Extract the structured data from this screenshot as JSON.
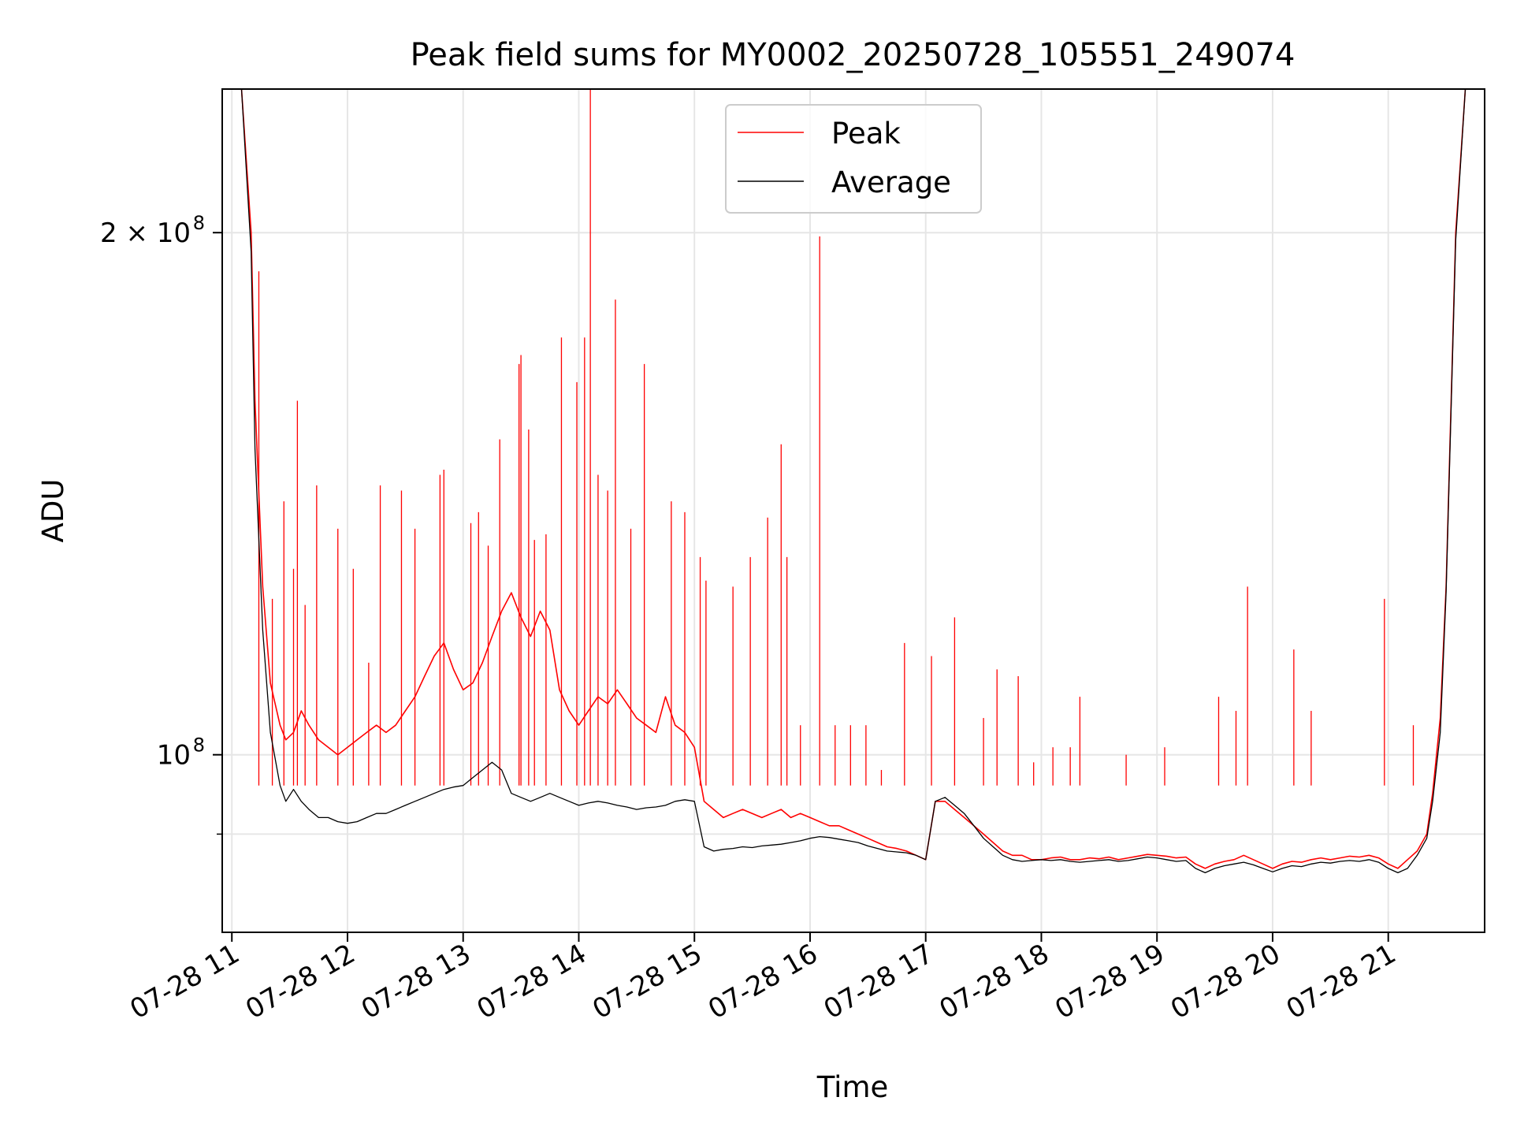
{
  "chart_data": {
    "type": "line",
    "title": "Peak field sums for MY0002_20250728_105551_249074",
    "xlabel": "Time",
    "ylabel": "ADU",
    "yscale": "log",
    "grid": true,
    "legend_placement": "top-center",
    "x_unit": "time",
    "xlim": [
      "2025-07-28 10:55",
      "2025-07-28 21:50"
    ],
    "ylim": [
      79000000,
      242000000
    ],
    "x_ticks": [
      {
        "value": "2025-07-28 11:00",
        "label": "07-28 11"
      },
      {
        "value": "2025-07-28 12:00",
        "label": "07-28 12"
      },
      {
        "value": "2025-07-28 13:00",
        "label": "07-28 13"
      },
      {
        "value": "2025-07-28 14:00",
        "label": "07-28 14"
      },
      {
        "value": "2025-07-28 15:00",
        "label": "07-28 15"
      },
      {
        "value": "2025-07-28 16:00",
        "label": "07-28 16"
      },
      {
        "value": "2025-07-28 17:00",
        "label": "07-28 17"
      },
      {
        "value": "2025-07-28 18:00",
        "label": "07-28 18"
      },
      {
        "value": "2025-07-28 19:00",
        "label": "07-28 19"
      },
      {
        "value": "2025-07-28 20:00",
        "label": "07-28 20"
      },
      {
        "value": "2025-07-28 21:00",
        "label": "07-28 21"
      }
    ],
    "y_ticks": [
      {
        "value": 100000000,
        "label": "10",
        "exp": "8"
      },
      {
        "value": 200000000,
        "label": "2 × 10",
        "exp": "8"
      }
    ],
    "y_minor_ticks": [
      90000000
    ],
    "series": [
      {
        "name": "Peak",
        "color": "#ff0000",
        "x": [
          "2025-07-28 10:55",
          "2025-07-28 11:05",
          "2025-07-28 11:10",
          "2025-07-28 11:12",
          "2025-07-28 11:16",
          "2025-07-28 11:20",
          "2025-07-28 11:25",
          "2025-07-28 11:28",
          "2025-07-28 11:32",
          "2025-07-28 11:36",
          "2025-07-28 11:40",
          "2025-07-28 11:45",
          "2025-07-28 11:50",
          "2025-07-28 11:55",
          "2025-07-28 12:00",
          "2025-07-28 12:05",
          "2025-07-28 12:10",
          "2025-07-28 12:15",
          "2025-07-28 12:20",
          "2025-07-28 12:25",
          "2025-07-28 12:30",
          "2025-07-28 12:35",
          "2025-07-28 12:40",
          "2025-07-28 12:45",
          "2025-07-28 12:50",
          "2025-07-28 12:55",
          "2025-07-28 13:00",
          "2025-07-28 13:05",
          "2025-07-28 13:10",
          "2025-07-28 13:15",
          "2025-07-28 13:20",
          "2025-07-28 13:25",
          "2025-07-28 13:30",
          "2025-07-28 13:35",
          "2025-07-28 13:40",
          "2025-07-28 13:45",
          "2025-07-28 13:50",
          "2025-07-28 13:55",
          "2025-07-28 14:00",
          "2025-07-28 14:05",
          "2025-07-28 14:10",
          "2025-07-28 14:15",
          "2025-07-28 14:20",
          "2025-07-28 14:25",
          "2025-07-28 14:30",
          "2025-07-28 14:35",
          "2025-07-28 14:40",
          "2025-07-28 14:45",
          "2025-07-28 14:50",
          "2025-07-28 14:55",
          "2025-07-28 15:00",
          "2025-07-28 15:05",
          "2025-07-28 15:10",
          "2025-07-28 15:15",
          "2025-07-28 15:20",
          "2025-07-28 15:25",
          "2025-07-28 15:30",
          "2025-07-28 15:35",
          "2025-07-28 15:40",
          "2025-07-28 15:45",
          "2025-07-28 15:50",
          "2025-07-28 15:55",
          "2025-07-28 16:00",
          "2025-07-28 16:05",
          "2025-07-28 16:10",
          "2025-07-28 16:15",
          "2025-07-28 16:20",
          "2025-07-28 16:25",
          "2025-07-28 16:30",
          "2025-07-28 16:35",
          "2025-07-28 16:40",
          "2025-07-28 16:45",
          "2025-07-28 16:50",
          "2025-07-28 16:55",
          "2025-07-28 17:00",
          "2025-07-28 17:05",
          "2025-07-28 17:10",
          "2025-07-28 17:15",
          "2025-07-28 17:20",
          "2025-07-28 17:25",
          "2025-07-28 17:30",
          "2025-07-28 17:35",
          "2025-07-28 17:40",
          "2025-07-28 17:45",
          "2025-07-28 17:50",
          "2025-07-28 17:55",
          "2025-07-28 18:00",
          "2025-07-28 18:05",
          "2025-07-28 18:10",
          "2025-07-28 18:15",
          "2025-07-28 18:20",
          "2025-07-28 18:25",
          "2025-07-28 18:30",
          "2025-07-28 18:35",
          "2025-07-28 18:40",
          "2025-07-28 18:45",
          "2025-07-28 18:50",
          "2025-07-28 18:55",
          "2025-07-28 19:00",
          "2025-07-28 19:05",
          "2025-07-28 19:10",
          "2025-07-28 19:15",
          "2025-07-28 19:20",
          "2025-07-28 19:25",
          "2025-07-28 19:30",
          "2025-07-28 19:35",
          "2025-07-28 19:40",
          "2025-07-28 19:45",
          "2025-07-28 19:50",
          "2025-07-28 19:55",
          "2025-07-28 20:00",
          "2025-07-28 20:05",
          "2025-07-28 20:10",
          "2025-07-28 20:15",
          "2025-07-28 20:20",
          "2025-07-28 20:25",
          "2025-07-28 20:30",
          "2025-07-28 20:35",
          "2025-07-28 20:40",
          "2025-07-28 20:45",
          "2025-07-28 20:50",
          "2025-07-28 20:55",
          "2025-07-28 21:00",
          "2025-07-28 21:05",
          "2025-07-28 21:10",
          "2025-07-28 21:15",
          "2025-07-28 21:20",
          "2025-07-28 21:23",
          "2025-07-28 21:27",
          "2025-07-28 21:30",
          "2025-07-28 21:35",
          "2025-07-28 21:40",
          "2025-07-28 21:50"
        ],
        "values": [
          242000000,
          242000000,
          200000000,
          160000000,
          125000000,
          110000000,
          104000000,
          102000000,
          103000000,
          106000000,
          104000000,
          102000000,
          101000000,
          100000000,
          101000000,
          102000000,
          103000000,
          104000000,
          103000000,
          104000000,
          106000000,
          108000000,
          111000000,
          114000000,
          116000000,
          112000000,
          109000000,
          110000000,
          113000000,
          117000000,
          121000000,
          124000000,
          120000000,
          117000000,
          121000000,
          118000000,
          109000000,
          106000000,
          104000000,
          106000000,
          108000000,
          107000000,
          109000000,
          107000000,
          105000000,
          104000000,
          103000000,
          108000000,
          104000000,
          103000000,
          101000000,
          94000000,
          93000000,
          92000000,
          92500000,
          93000000,
          92500000,
          92000000,
          92500000,
          93000000,
          92000000,
          92500000,
          92000000,
          91500000,
          91000000,
          91000000,
          90500000,
          90000000,
          89500000,
          89000000,
          88500000,
          88300000,
          88000000,
          87500000,
          87000000,
          94000000,
          94000000,
          93000000,
          92000000,
          91000000,
          90000000,
          89000000,
          88000000,
          87500000,
          87500000,
          87000000,
          87000000,
          87200000,
          87300000,
          87000000,
          87000000,
          87200000,
          87100000,
          87300000,
          87000000,
          87200000,
          87400000,
          87600000,
          87500000,
          87400000,
          87200000,
          87300000,
          86500000,
          86000000,
          86500000,
          86800000,
          87000000,
          87500000,
          87000000,
          86500000,
          86000000,
          86500000,
          86800000,
          86700000,
          87000000,
          87200000,
          87000000,
          87200000,
          87400000,
          87300000,
          87500000,
          87200000,
          86500000,
          86000000,
          87000000,
          88000000,
          90000000,
          95000000,
          105000000,
          125000000,
          200000000,
          242000000,
          242000000
        ]
      },
      {
        "name": "Average",
        "color": "#000000",
        "x": [
          "2025-07-28 10:55",
          "2025-07-28 11:05",
          "2025-07-28 11:10",
          "2025-07-28 11:12",
          "2025-07-28 11:16",
          "2025-07-28 11:20",
          "2025-07-28 11:25",
          "2025-07-28 11:28",
          "2025-07-28 11:32",
          "2025-07-28 11:36",
          "2025-07-28 11:40",
          "2025-07-28 11:45",
          "2025-07-28 11:50",
          "2025-07-28 11:55",
          "2025-07-28 12:00",
          "2025-07-28 12:05",
          "2025-07-28 12:10",
          "2025-07-28 12:15",
          "2025-07-28 12:20",
          "2025-07-28 12:25",
          "2025-07-28 12:30",
          "2025-07-28 12:35",
          "2025-07-28 12:40",
          "2025-07-28 12:45",
          "2025-07-28 12:50",
          "2025-07-28 12:55",
          "2025-07-28 13:00",
          "2025-07-28 13:05",
          "2025-07-28 13:10",
          "2025-07-28 13:15",
          "2025-07-28 13:20",
          "2025-07-28 13:25",
          "2025-07-28 13:30",
          "2025-07-28 13:35",
          "2025-07-28 13:40",
          "2025-07-28 13:45",
          "2025-07-28 13:50",
          "2025-07-28 13:55",
          "2025-07-28 14:00",
          "2025-07-28 14:05",
          "2025-07-28 14:10",
          "2025-07-28 14:15",
          "2025-07-28 14:20",
          "2025-07-28 14:25",
          "2025-07-28 14:30",
          "2025-07-28 14:35",
          "2025-07-28 14:40",
          "2025-07-28 14:45",
          "2025-07-28 14:50",
          "2025-07-28 14:55",
          "2025-07-28 15:00",
          "2025-07-28 15:05",
          "2025-07-28 15:10",
          "2025-07-28 15:15",
          "2025-07-28 15:20",
          "2025-07-28 15:25",
          "2025-07-28 15:30",
          "2025-07-28 15:35",
          "2025-07-28 15:40",
          "2025-07-28 15:45",
          "2025-07-28 15:50",
          "2025-07-28 15:55",
          "2025-07-28 16:00",
          "2025-07-28 16:05",
          "2025-07-28 16:10",
          "2025-07-28 16:15",
          "2025-07-28 16:20",
          "2025-07-28 16:25",
          "2025-07-28 16:30",
          "2025-07-28 16:35",
          "2025-07-28 16:40",
          "2025-07-28 16:45",
          "2025-07-28 16:50",
          "2025-07-28 16:55",
          "2025-07-28 17:00",
          "2025-07-28 17:05",
          "2025-07-28 17:10",
          "2025-07-28 17:15",
          "2025-07-28 17:20",
          "2025-07-28 17:25",
          "2025-07-28 17:30",
          "2025-07-28 17:35",
          "2025-07-28 17:40",
          "2025-07-28 17:45",
          "2025-07-28 17:50",
          "2025-07-28 17:55",
          "2025-07-28 18:00",
          "2025-07-28 18:05",
          "2025-07-28 18:10",
          "2025-07-28 18:15",
          "2025-07-28 18:20",
          "2025-07-28 18:25",
          "2025-07-28 18:30",
          "2025-07-28 18:35",
          "2025-07-28 18:40",
          "2025-07-28 18:45",
          "2025-07-28 18:50",
          "2025-07-28 18:55",
          "2025-07-28 19:00",
          "2025-07-28 19:05",
          "2025-07-28 19:10",
          "2025-07-28 19:15",
          "2025-07-28 19:20",
          "2025-07-28 19:25",
          "2025-07-28 19:30",
          "2025-07-28 19:35",
          "2025-07-28 19:40",
          "2025-07-28 19:45",
          "2025-07-28 19:50",
          "2025-07-28 19:55",
          "2025-07-28 20:00",
          "2025-07-28 20:05",
          "2025-07-28 20:10",
          "2025-07-28 20:15",
          "2025-07-28 20:20",
          "2025-07-28 20:25",
          "2025-07-28 20:30",
          "2025-07-28 20:35",
          "2025-07-28 20:40",
          "2025-07-28 20:45",
          "2025-07-28 20:50",
          "2025-07-28 20:55",
          "2025-07-28 21:00",
          "2025-07-28 21:05",
          "2025-07-28 21:10",
          "2025-07-28 21:15",
          "2025-07-28 21:20",
          "2025-07-28 21:23",
          "2025-07-28 21:27",
          "2025-07-28 21:30",
          "2025-07-28 21:35",
          "2025-07-28 21:40",
          "2025-07-28 21:50"
        ],
        "values": [
          242000000,
          242000000,
          195000000,
          150000000,
          118000000,
          103000000,
          96000000,
          94000000,
          95500000,
          94000000,
          93000000,
          92000000,
          92000000,
          91500000,
          91300000,
          91500000,
          92000000,
          92500000,
          92500000,
          93000000,
          93500000,
          94000000,
          94500000,
          95000000,
          95500000,
          95800000,
          96000000,
          97000000,
          98000000,
          99000000,
          98000000,
          95000000,
          94500000,
          94000000,
          94500000,
          95000000,
          94500000,
          94000000,
          93500000,
          93800000,
          94000000,
          93800000,
          93500000,
          93300000,
          93000000,
          93200000,
          93300000,
          93500000,
          94000000,
          94200000,
          94000000,
          88500000,
          88000000,
          88200000,
          88300000,
          88500000,
          88400000,
          88600000,
          88700000,
          88800000,
          89000000,
          89200000,
          89500000,
          89700000,
          89600000,
          89400000,
          89200000,
          89000000,
          88600000,
          88300000,
          88000000,
          87900000,
          87800000,
          87500000,
          87000000,
          94000000,
          94500000,
          93500000,
          92500000,
          91000000,
          89500000,
          88500000,
          87500000,
          87000000,
          86800000,
          86900000,
          87000000,
          86900000,
          87000000,
          86800000,
          86700000,
          86800000,
          86900000,
          87000000,
          86800000,
          86900000,
          87100000,
          87300000,
          87200000,
          87000000,
          86800000,
          86900000,
          86000000,
          85500000,
          86000000,
          86300000,
          86500000,
          86700000,
          86400000,
          86000000,
          85600000,
          86000000,
          86300000,
          86200000,
          86500000,
          86700000,
          86600000,
          86800000,
          86900000,
          86800000,
          87000000,
          86700000,
          86000000,
          85500000,
          86000000,
          87500000,
          89500000,
          94000000,
          103000000,
          124000000,
          198000000,
          242000000,
          242000000
        ]
      }
    ],
    "spikes": {
      "Peak": [
        [
          "2025-07-28 11:14",
          190000000
        ],
        [
          "2025-07-28 11:21",
          123000000
        ],
        [
          "2025-07-28 11:27",
          140000000
        ],
        [
          "2025-07-28 11:32",
          128000000
        ],
        [
          "2025-07-28 11:34",
          160000000
        ],
        [
          "2025-07-28 11:38",
          122000000
        ],
        [
          "2025-07-28 11:44",
          143000000
        ],
        [
          "2025-07-28 11:55",
          135000000
        ],
        [
          "2025-07-28 12:03",
          128000000
        ],
        [
          "2025-07-28 12:11",
          113000000
        ],
        [
          "2025-07-28 12:17",
          143000000
        ],
        [
          "2025-07-28 12:28",
          142000000
        ],
        [
          "2025-07-28 12:35",
          135000000
        ],
        [
          "2025-07-28 12:48",
          145000000
        ],
        [
          "2025-07-28 12:50",
          146000000
        ],
        [
          "2025-07-28 13:04",
          136000000
        ],
        [
          "2025-07-28 13:08",
          138000000
        ],
        [
          "2025-07-28 13:13",
          132000000
        ],
        [
          "2025-07-28 13:19",
          152000000
        ],
        [
          "2025-07-28 13:29",
          168000000
        ],
        [
          "2025-07-28 13:30",
          170000000
        ],
        [
          "2025-07-28 13:34",
          154000000
        ],
        [
          "2025-07-28 13:37",
          133000000
        ],
        [
          "2025-07-28 13:43",
          134000000
        ],
        [
          "2025-07-28 13:51",
          174000000
        ],
        [
          "2025-07-28 13:59",
          164000000
        ],
        [
          "2025-07-28 14:03",
          174000000
        ],
        [
          "2025-07-28 14:06",
          242000000
        ],
        [
          "2025-07-28 14:10",
          145000000
        ],
        [
          "2025-07-28 14:15",
          142000000
        ],
        [
          "2025-07-28 14:19",
          183000000
        ],
        [
          "2025-07-28 14:27",
          135000000
        ],
        [
          "2025-07-28 14:34",
          168000000
        ],
        [
          "2025-07-28 14:48",
          140000000
        ],
        [
          "2025-07-28 14:55",
          138000000
        ],
        [
          "2025-07-28 15:03",
          130000000
        ],
        [
          "2025-07-28 15:06",
          126000000
        ],
        [
          "2025-07-28 15:20",
          125000000
        ],
        [
          "2025-07-28 15:29",
          130000000
        ],
        [
          "2025-07-28 15:38",
          137000000
        ],
        [
          "2025-07-28 15:45",
          151000000
        ],
        [
          "2025-07-28 15:48",
          130000000
        ],
        [
          "2025-07-28 15:55",
          104000000
        ],
        [
          "2025-07-28 16:05",
          199000000
        ],
        [
          "2025-07-28 16:13",
          104000000
        ],
        [
          "2025-07-28 16:21",
          104000000
        ],
        [
          "2025-07-28 16:29",
          104000000
        ],
        [
          "2025-07-28 16:37",
          98000000
        ],
        [
          "2025-07-28 16:49",
          116000000
        ],
        [
          "2025-07-28 17:03",
          114000000
        ],
        [
          "2025-07-28 17:15",
          120000000
        ],
        [
          "2025-07-28 17:30",
          105000000
        ],
        [
          "2025-07-28 17:37",
          112000000
        ],
        [
          "2025-07-28 17:48",
          111000000
        ],
        [
          "2025-07-28 17:56",
          99000000
        ],
        [
          "2025-07-28 18:06",
          101000000
        ],
        [
          "2025-07-28 18:15",
          101000000
        ],
        [
          "2025-07-28 18:20",
          108000000
        ],
        [
          "2025-07-28 18:44",
          100000000
        ],
        [
          "2025-07-28 19:04",
          101000000
        ],
        [
          "2025-07-28 19:32",
          108000000
        ],
        [
          "2025-07-28 19:41",
          106000000
        ],
        [
          "2025-07-28 19:47",
          125000000
        ],
        [
          "2025-07-28 20:11",
          115000000
        ],
        [
          "2025-07-28 20:20",
          106000000
        ],
        [
          "2025-07-28 20:58",
          123000000
        ],
        [
          "2025-07-28 21:13",
          104000000
        ]
      ]
    }
  }
}
